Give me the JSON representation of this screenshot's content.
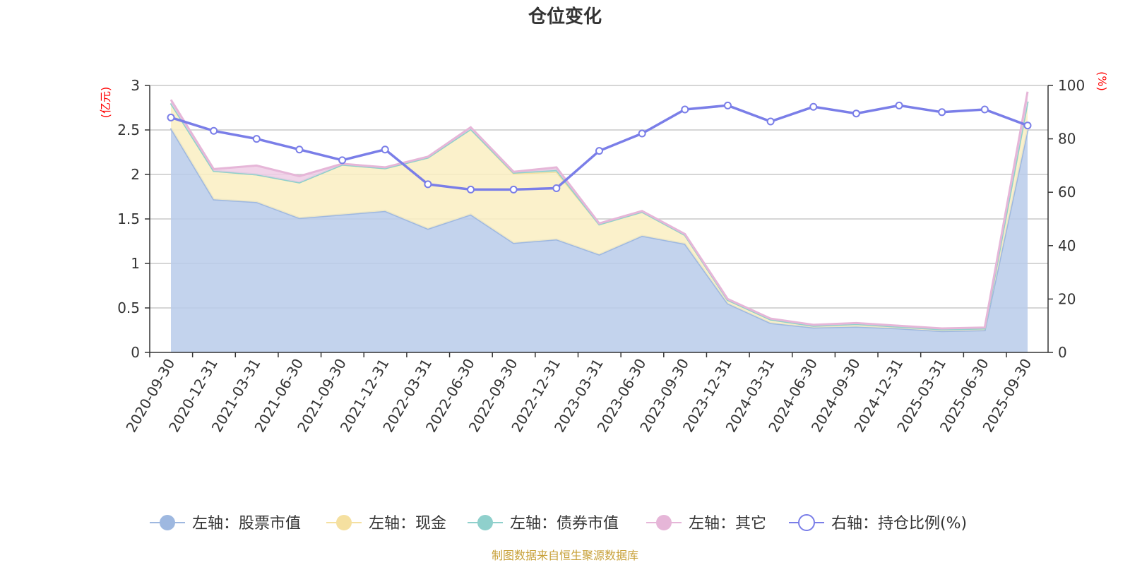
{
  "chart_data": {
    "type": "area",
    "title": "仓位变化",
    "categories": [
      "2020-09-30",
      "2020-12-31",
      "2021-03-31",
      "2021-06-30",
      "2021-09-30",
      "2021-12-31",
      "2022-03-31",
      "2022-06-30",
      "2022-09-30",
      "2022-12-31",
      "2023-03-31",
      "2023-06-30",
      "2023-09-30",
      "2023-12-31",
      "2024-03-31",
      "2024-06-30",
      "2024-09-30",
      "2024-12-31",
      "2025-03-31",
      "2025-06-30",
      "2025-09-30"
    ],
    "y_left": {
      "label": "(亿元)",
      "min": 0,
      "max": 3,
      "ticks": [
        "0",
        "0.5",
        "1",
        "1.5",
        "2",
        "2.5",
        "3"
      ],
      "tick_values": [
        0,
        0.5,
        1,
        1.5,
        2,
        2.5,
        3
      ]
    },
    "y_right": {
      "label": "(%)",
      "min": 0,
      "max": 100,
      "ticks": [
        "0",
        "20",
        "40",
        "60",
        "80",
        "100"
      ],
      "tick_values": [
        0,
        20,
        40,
        60,
        80,
        100
      ]
    },
    "stack_series": [
      {
        "name": "左轴：股票市值",
        "color": "#9eb8e0",
        "fill": "#b8cbea",
        "values": [
          2.52,
          1.72,
          1.69,
          1.51,
          1.55,
          1.59,
          1.39,
          1.55,
          1.23,
          1.27,
          1.1,
          1.31,
          1.22,
          0.55,
          0.33,
          0.28,
          0.29,
          0.27,
          0.24,
          0.25,
          2.5
        ]
      },
      {
        "name": "左轴：现金",
        "color": "#f5e0a0",
        "fill": "#faeec2",
        "values": [
          0.28,
          0.32,
          0.31,
          0.4,
          0.56,
          0.48,
          0.8,
          0.96,
          0.78,
          0.76,
          0.34,
          0.27,
          0.1,
          0.04,
          0.04,
          0.02,
          0.03,
          0.02,
          0.02,
          0.02,
          0.32
        ]
      },
      {
        "name": "左轴：债券市值",
        "color": "#8fd0cc",
        "fill": "#b9e3e0",
        "values": [
          0,
          0,
          0,
          0,
          0,
          0,
          0,
          0,
          0.01,
          0.02,
          0,
          0,
          0,
          0,
          0,
          0,
          0,
          0,
          0,
          0,
          0
        ]
      },
      {
        "name": "左轴：其它",
        "color": "#e6b6d8",
        "fill": "#efcde5",
        "values": [
          0.04,
          0.02,
          0.1,
          0.07,
          0.01,
          0.01,
          0.01,
          0.02,
          0.01,
          0.03,
          0.01,
          0.01,
          0.01,
          0.01,
          0.01,
          0.01,
          0.01,
          0.01,
          0.01,
          0.01,
          0.11
        ]
      }
    ],
    "line_series": {
      "name": "右轴：持仓比例(%)",
      "color": "#7a7ee8",
      "values": [
        88,
        83,
        80,
        76,
        72,
        76,
        63,
        61,
        61,
        61.5,
        75.5,
        82,
        91,
        92.5,
        86.5,
        92,
        89.5,
        92.5,
        90,
        91,
        85
      ]
    },
    "legend": [
      "左轴：股票市值",
      "左轴：现金",
      "左轴：债券市值",
      "左轴：其它",
      "右轴：持仓比例(%)"
    ],
    "legend_position": "bottom",
    "grid": true
  },
  "source": "制图数据来自恒生聚源数据库"
}
